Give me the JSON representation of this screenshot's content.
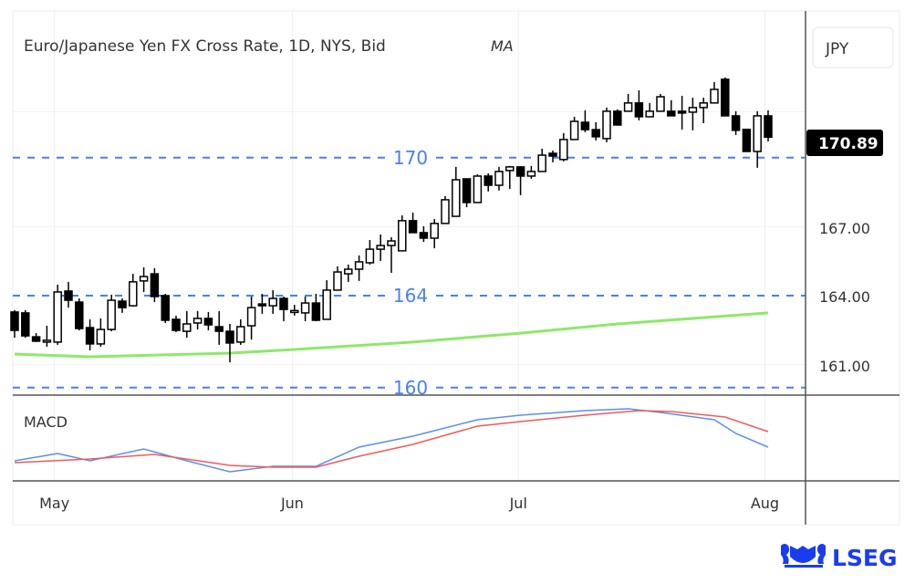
{
  "colors": {
    "ma": "#8ee86a",
    "macd": "#5b8ff0",
    "signal": "#f05a5a",
    "level": "#4a7ff0",
    "bull": "#ffffff",
    "bear": "#000000",
    "logo": "#1a3cf0"
  },
  "header": {
    "title": "Euro/Japanese Yen FX Cross Rate, 1D, NYS, Bid",
    "indicator": "MA"
  },
  "currency_button": "JPY",
  "logo": {
    "text": "LSEG"
  },
  "chart_data": [
    {
      "type": "candlestick",
      "title": "Euro/Japanese Yen FX Cross Rate, 1D, NYS, Bid",
      "ylim": [
        159.6,
        175
      ],
      "y_ticks": [
        "167.00",
        "164.00",
        "161.00"
      ],
      "y_tick_values": [
        167,
        164,
        161
      ],
      "last_price": "170.89",
      "last_price_value": 170.89,
      "x_ticks": [
        {
          "label": "May",
          "index": 3.7
        },
        {
          "label": "Jun",
          "index": 25.8
        },
        {
          "label": "Jul",
          "index": 46.8
        },
        {
          "label": "Aug",
          "index": 69.7
        }
      ],
      "levels": [
        {
          "label": "170",
          "value": 170
        },
        {
          "label": "164",
          "value": 164
        },
        {
          "label": "160",
          "value": 160
        }
      ],
      "candles": [
        [
          163.29,
          163.37,
          162.17,
          162.49
        ],
        [
          163.25,
          163.37,
          162.17,
          162.25
        ],
        [
          162.21,
          162.37,
          161.98,
          162.02
        ],
        [
          162.02,
          162.69,
          161.78,
          162.06
        ],
        [
          161.98,
          164.48,
          161.86,
          164.16
        ],
        [
          164.2,
          164.6,
          163.48,
          163.8
        ],
        [
          163.72,
          163.88,
          162.49,
          162.57
        ],
        [
          162.61,
          162.97,
          161.62,
          161.9
        ],
        [
          161.9,
          163.01,
          161.78,
          162.53
        ],
        [
          162.53,
          164.04,
          162.45,
          163.8
        ],
        [
          163.76,
          163.88,
          163.25,
          163.48
        ],
        [
          163.56,
          164.95,
          163.52,
          164.6
        ],
        [
          164.64,
          165.23,
          164.16,
          164.83
        ],
        [
          164.95,
          165.19,
          163.72,
          163.96
        ],
        [
          164.0,
          164.08,
          162.81,
          162.93
        ],
        [
          162.97,
          163.13,
          162.41,
          162.49
        ],
        [
          162.45,
          163.33,
          162.17,
          162.77
        ],
        [
          162.81,
          163.33,
          162.53,
          163.01
        ],
        [
          163.01,
          163.29,
          162.49,
          162.73
        ],
        [
          162.65,
          163.33,
          161.86,
          162.45
        ],
        [
          162.45,
          162.77,
          161.1,
          161.94
        ],
        [
          161.98,
          162.97,
          161.86,
          162.65
        ],
        [
          162.69,
          163.96,
          162.09,
          163.48
        ],
        [
          163.64,
          164.08,
          163.21,
          163.6
        ],
        [
          163.56,
          164.24,
          163.21,
          163.88
        ],
        [
          163.88,
          163.96,
          162.89,
          163.4
        ],
        [
          163.33,
          163.6,
          163.13,
          163.35
        ],
        [
          163.25,
          163.96,
          162.89,
          163.68
        ],
        [
          163.68,
          164.08,
          162.89,
          162.93
        ],
        [
          162.97,
          164.67,
          162.97,
          164.24
        ],
        [
          164.24,
          165.27,
          164.24,
          165.03
        ],
        [
          164.95,
          165.35,
          164.6,
          165.15
        ],
        [
          165.15,
          165.75,
          164.64,
          165.47
        ],
        [
          165.43,
          166.42,
          165.35,
          166.02
        ],
        [
          166.02,
          166.66,
          165.51,
          166.18
        ],
        [
          166.18,
          166.54,
          164.99,
          166.38
        ],
        [
          165.95,
          167.49,
          165.95,
          167.26
        ],
        [
          167.26,
          167.61,
          166.74,
          166.74
        ],
        [
          166.74,
          167.02,
          166.34,
          166.5
        ],
        [
          166.5,
          167.33,
          166.06,
          167.14
        ],
        [
          167.14,
          168.33,
          167.14,
          168.17
        ],
        [
          167.45,
          169.6,
          167.45,
          169.04
        ],
        [
          169.08,
          169.08,
          167.85,
          168.05
        ],
        [
          168.05,
          169.28,
          168.05,
          169.2
        ],
        [
          169.2,
          169.32,
          168.53,
          168.8
        ],
        [
          168.8,
          169.6,
          168.57,
          169.4
        ],
        [
          169.44,
          169.64,
          168.64,
          169.6
        ],
        [
          169.6,
          169.6,
          168.37,
          169.2
        ],
        [
          169.2,
          169.64,
          169.08,
          169.4
        ],
        [
          169.4,
          170.39,
          169.4,
          170.11
        ],
        [
          170.19,
          170.31,
          169.8,
          170.07
        ],
        [
          169.92,
          171.07,
          169.84,
          170.79
        ],
        [
          170.79,
          171.78,
          170.79,
          171.58
        ],
        [
          171.54,
          172.06,
          171.11,
          171.22
        ],
        [
          171.22,
          171.54,
          170.75,
          170.91
        ],
        [
          170.83,
          172.18,
          170.67,
          172.02
        ],
        [
          172.02,
          172.1,
          171.42,
          171.42
        ],
        [
          172.02,
          172.77,
          172.02,
          172.38
        ],
        [
          172.38,
          172.93,
          171.62,
          171.78
        ],
        [
          171.78,
          172.38,
          171.78,
          172.02
        ],
        [
          172.02,
          172.77,
          172.02,
          172.65
        ],
        [
          172.02,
          172.5,
          171.82,
          171.82
        ],
        [
          172.02,
          172.69,
          171.22,
          172.0
        ],
        [
          171.98,
          172.61,
          171.19,
          172.18
        ],
        [
          172.18,
          172.61,
          171.5,
          172.38
        ],
        [
          172.38,
          173.29,
          172.38,
          172.97
        ],
        [
          173.41,
          173.49,
          171.82,
          171.82
        ],
        [
          171.82,
          172.02,
          170.99,
          171.19
        ],
        [
          171.23,
          171.23,
          170.27,
          170.27
        ],
        [
          170.27,
          172.02,
          169.56,
          171.82
        ],
        [
          171.82,
          172.06,
          170.71,
          170.89
        ]
      ],
      "candle_fields": [
        "open",
        "high",
        "low",
        "close"
      ],
      "ma": [
        [
          0,
          161.46
        ],
        [
          7,
          161.34
        ],
        [
          20,
          161.5
        ],
        [
          26,
          161.66
        ],
        [
          37,
          161.98
        ],
        [
          47,
          162.37
        ],
        [
          56,
          162.77
        ],
        [
          70,
          163.25
        ]
      ]
    },
    {
      "type": "line",
      "title": "MACD",
      "ylim": [
        -5,
        4.5
      ],
      "series": [
        {
          "name": "MACD",
          "points": [
            [
              0,
              -2.5
            ],
            [
              4,
              -1.7
            ],
            [
              7,
              -2.5
            ],
            [
              12,
              -1.2
            ],
            [
              16,
              -2.5
            ],
            [
              20,
              -3.7
            ],
            [
              24,
              -3.1
            ],
            [
              28,
              -3.1
            ],
            [
              32,
              -1.0
            ],
            [
              37,
              0.2
            ],
            [
              43,
              2.0
            ],
            [
              47,
              2.5
            ],
            [
              53,
              3.0
            ],
            [
              57,
              3.2
            ],
            [
              60,
              2.8
            ],
            [
              65,
              2.0
            ],
            [
              67,
              0.5
            ],
            [
              70,
              -1.0
            ]
          ]
        },
        {
          "name": "Signal",
          "points": [
            [
              0,
              -2.7
            ],
            [
              7,
              -2.3
            ],
            [
              13,
              -1.8
            ],
            [
              20,
              -3.0
            ],
            [
              24,
              -3.2
            ],
            [
              28,
              -3.2
            ],
            [
              32,
              -2.0
            ],
            [
              37,
              -0.7
            ],
            [
              43,
              1.3
            ],
            [
              47,
              1.8
            ],
            [
              53,
              2.5
            ],
            [
              58,
              3.0
            ],
            [
              61,
              2.9
            ],
            [
              66,
              2.3
            ],
            [
              70,
              0.7
            ]
          ]
        }
      ]
    }
  ]
}
